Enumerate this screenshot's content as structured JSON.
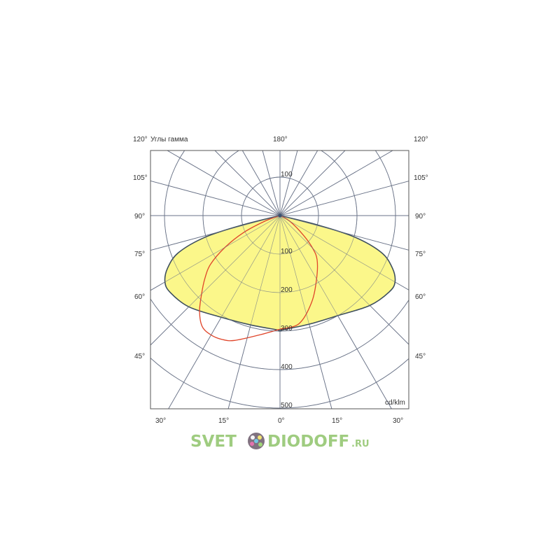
{
  "chart_data": {
    "type": "polar",
    "title": "Углы гамма",
    "unit": "cd/klm",
    "radial_range": [
      0,
      500
    ],
    "radial_ticks": [
      100,
      200,
      300,
      400,
      500
    ],
    "radial_tick_labels_upper": [
      "100"
    ],
    "radial_tick_labels_lower": [
      "100",
      "200",
      "300",
      "400",
      "500"
    ],
    "angle_step_deg": 15,
    "angle_labels_left": [
      "120°",
      "105°",
      "90°",
      "75°",
      "60°",
      "45°",
      "30°"
    ],
    "angle_labels_right": [
      "120°",
      "105°",
      "90°",
      "75°",
      "60°",
      "45°",
      "30°"
    ],
    "angle_label_top": "180°",
    "angle_labels_bottom": [
      "15°",
      "0°",
      "15°"
    ],
    "grid": true,
    "series": [
      {
        "color": "#3e4f5e",
        "fill": "#fbf78a",
        "left": {
          "gamma": [
            0,
            15,
            30,
            45,
            55,
            60,
            65,
            70,
            74,
            76,
            77
          ],
          "intensity": [
            298,
            294,
            305,
            335,
            348,
            345,
            322,
            280,
            200,
            100,
            0
          ]
        },
        "right": {
          "gamma": [
            0,
            15,
            30,
            45,
            55,
            60,
            65,
            70,
            74,
            76,
            77
          ],
          "intensity": [
            298,
            292,
            300,
            330,
            346,
            345,
            322,
            280,
            200,
            100,
            0
          ]
        }
      },
      {
        "color": "#e0452a",
        "fill": "none",
        "left": {
          "gamma": [
            0,
            10,
            20,
            25,
            30,
            35,
            40,
            45,
            50,
            55,
            60,
            65,
            70,
            73
          ],
          "intensity": [
            295,
            315,
            345,
            355,
            358,
            352,
            325,
            288,
            255,
            220,
            165,
            105,
            40,
            0
          ]
        },
        "right": {
          "gamma": [
            0,
            10,
            20,
            30,
            40,
            45,
            50,
            60,
            70
          ],
          "intensity": [
            295,
            285,
            240,
            190,
            150,
            120,
            80,
            30,
            0
          ]
        }
      }
    ]
  },
  "watermark": "SVETODIODOFF.ru"
}
